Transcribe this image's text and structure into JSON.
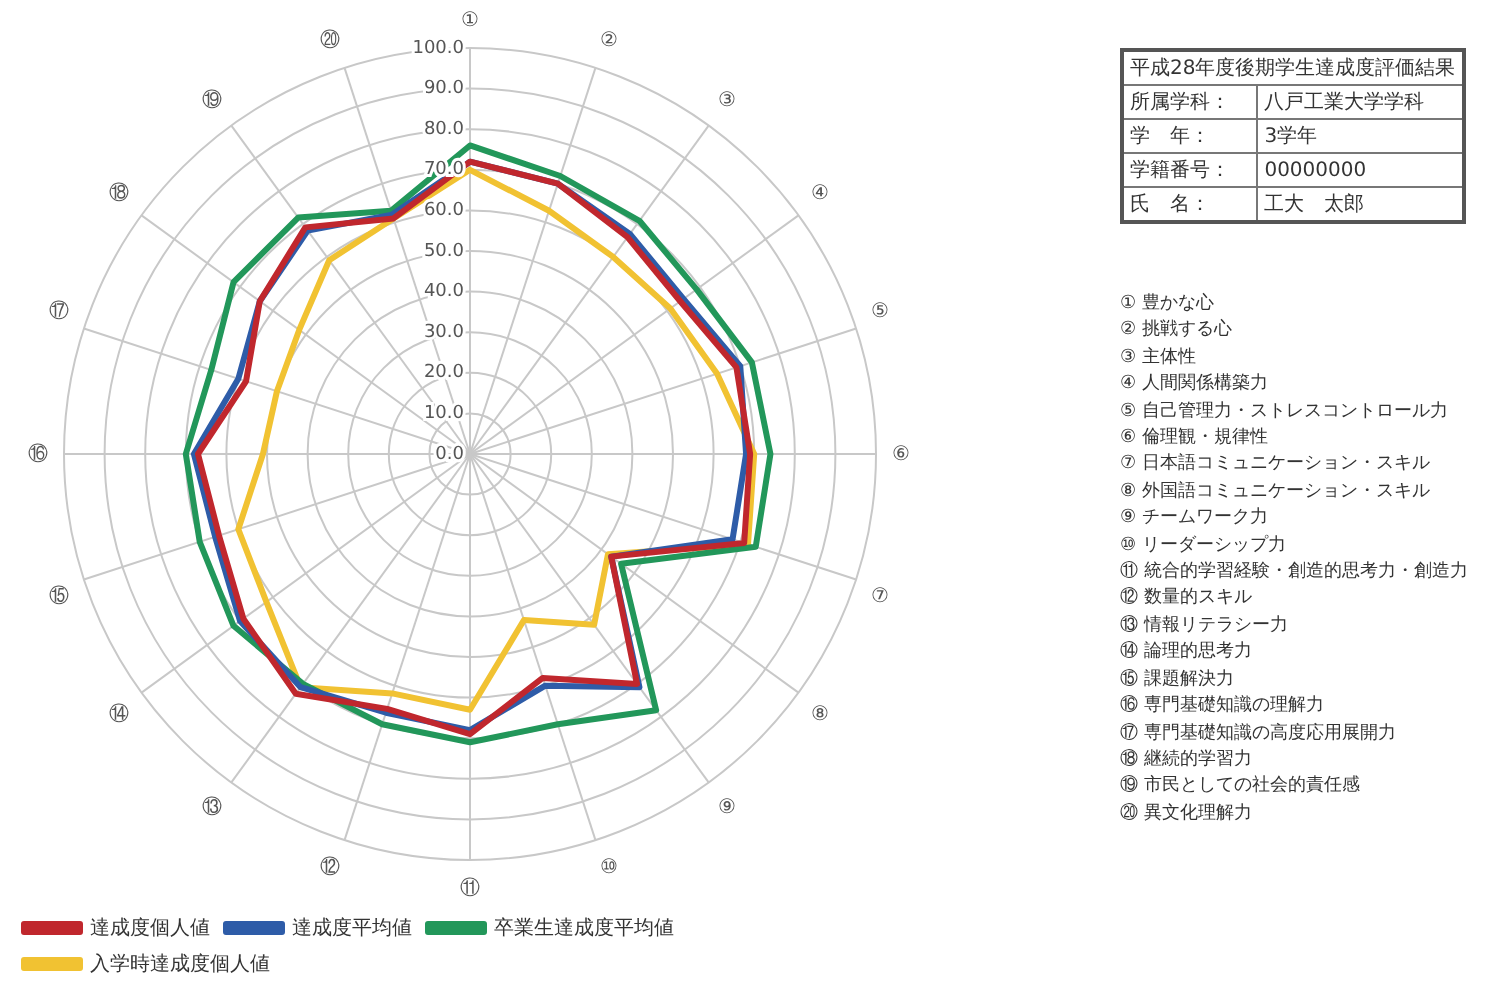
{
  "chart_data": {
    "type": "radar",
    "categories": [
      "①",
      "②",
      "③",
      "④",
      "⑤",
      "⑥",
      "⑦",
      "⑧",
      "⑨",
      "⑩",
      "⑪",
      "⑫",
      "⑬",
      "⑭",
      "⑮",
      "⑯",
      "⑰",
      "⑱",
      "⑲",
      "⑳"
    ],
    "series": [
      {
        "name": "達成度個人値",
        "color": "#c0272d",
        "values": [
          72,
          70,
          66,
          64,
          69,
          69,
          71,
          43,
          70,
          58,
          69,
          66,
          73,
          69,
          65,
          67,
          58,
          64,
          69,
          61
        ]
      },
      {
        "name": "達成度平均値",
        "color": "#2e5ca8",
        "values": [
          72,
          70,
          67,
          65,
          70,
          68,
          68,
          43,
          71,
          60,
          68,
          67,
          71,
          70,
          66,
          68,
          60,
          64,
          68,
          62
        ]
      },
      {
        "name": "卒業生達成度平均値",
        "color": "#22975a",
        "values": [
          76,
          72,
          71,
          69,
          73,
          74,
          74,
          46,
          78,
          70,
          71,
          70,
          70,
          72,
          70,
          70,
          67,
          72,
          72,
          63
        ]
      },
      {
        "name": "入学時達成度個人値",
        "color": "#f1c232",
        "values": [
          70,
          63,
          60,
          61,
          64,
          70,
          72,
          42,
          52,
          43,
          63,
          62,
          71,
          62,
          60,
          51,
          50,
          52,
          59,
          61
        ]
      }
    ],
    "ylim": [
      0,
      100
    ],
    "yticks": [
      {
        "value": 0,
        "label": "0.0"
      },
      {
        "value": 10,
        "label": "10.0"
      },
      {
        "value": 20,
        "label": "20.0"
      },
      {
        "value": 30,
        "label": "30.0"
      },
      {
        "value": 40,
        "label": "40.0"
      },
      {
        "value": 50,
        "label": "50.0"
      },
      {
        "value": 60,
        "label": "60.0"
      },
      {
        "value": 70,
        "label": "70.0"
      },
      {
        "value": 80,
        "label": "80.0"
      },
      {
        "value": 90,
        "label": "90.0"
      },
      {
        "value": 100,
        "label": "100.0"
      }
    ],
    "grid": true,
    "legend": "bottom",
    "marker": "none",
    "line_style": "solid",
    "annotations": [
      "平成28年度後期学生達成度評価結果",
      "所属学科：\t八戸工業大学学科",
      "学　年：\t3学年",
      "学籍番号：\t00000000",
      "氏　名：\t工大　太郎",
      "① 豊かな心",
      "② 挑戦する心",
      "③ 主体性",
      "④ 人間関係構築力",
      "⑤ 自己管理力・ストレスコントロール力",
      "⑥ 倫理観・規律性",
      "⑦ 日本語コミュニケーション・スキル",
      "⑧ 外国語コミュニケーション・スキル",
      "⑨ チームワーク力",
      "⑩ リーダーシップ力",
      "⑪ 統合的学習経験・創造的思考力・創造力",
      "⑫ 数量的スキル",
      "⑬ 情報リテラシー力",
      "⑭ 論理的思考力",
      "⑮ 課題解決力",
      "⑯ 専門基礎知識の理解力",
      "⑰ 専門基礎知識の高度応用展開力",
      "⑱ 継続的学習力",
      "⑲ 市民としての社会的責任感",
      "⑳ 異文化理解力"
    ]
  }
}
